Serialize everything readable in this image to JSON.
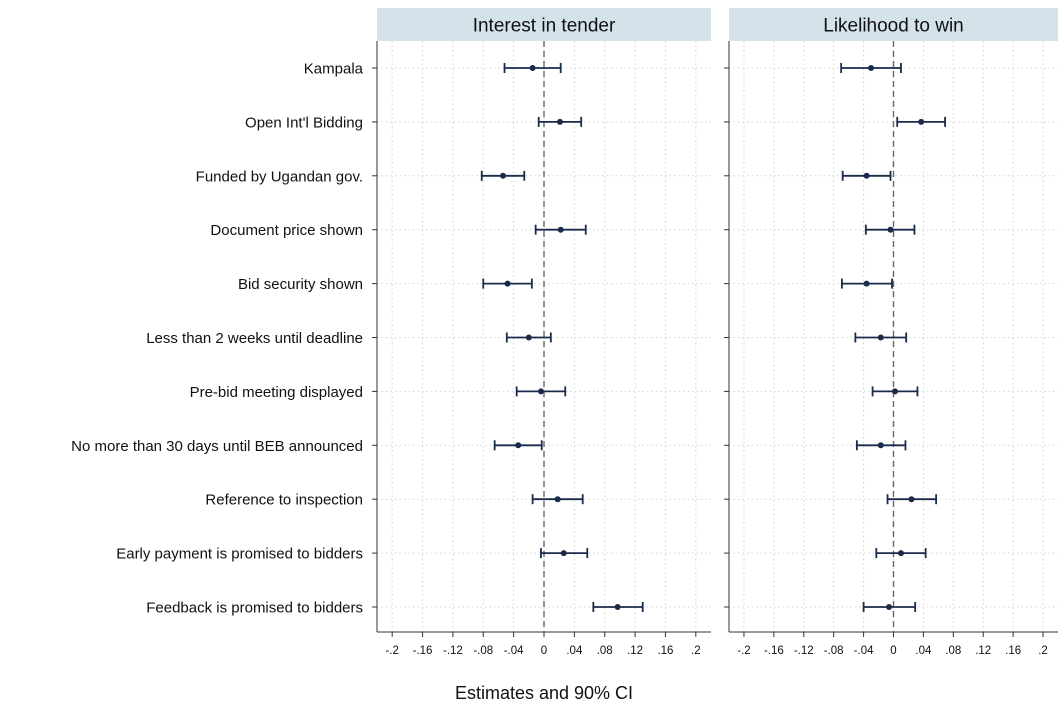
{
  "chart_data": [
    {
      "type": "scatter",
      "subtype": "coefficient plot with error bars",
      "title": "Interest in tender",
      "categories": [
        "Kampala",
        "Open Int'l Bidding",
        "Funded by Ugandan gov.",
        "Document price shown",
        "Bid security shown",
        "Less than 2 weeks until deadline",
        "Pre-bid meeting displayed",
        "No more than 30 days until BEB announced",
        "Reference to inspection",
        "Early payment is promised to bidders",
        "Feedback is promised to bidders"
      ],
      "series": [
        {
          "estimate": [
            -0.015,
            0.021,
            -0.054,
            0.022,
            -0.048,
            -0.02,
            -0.004,
            -0.034,
            0.018,
            0.026,
            0.097
          ],
          "ci_low": [
            -0.052,
            -0.007,
            -0.082,
            -0.011,
            -0.08,
            -0.049,
            -0.036,
            -0.065,
            -0.015,
            -0.004,
            0.065
          ],
          "ci_high": [
            0.022,
            0.049,
            -0.026,
            0.055,
            -0.016,
            0.009,
            0.028,
            -0.003,
            0.051,
            0.057,
            0.13
          ]
        }
      ],
      "xlim": [
        -0.22,
        0.22
      ],
      "xticks": [
        "-.2",
        "-.16",
        "-.12",
        "-.08",
        "-.04",
        "0",
        ".04",
        ".08",
        ".12",
        ".16",
        ".2"
      ],
      "reference_line": 0,
      "grid": true
    },
    {
      "type": "scatter",
      "subtype": "coefficient plot with error bars",
      "title": "Likelihood to win",
      "categories": [
        "Kampala",
        "Open Int'l Bidding",
        "Funded by Ugandan gov.",
        "Document price shown",
        "Bid security shown",
        "Less than 2 weeks until deadline",
        "Pre-bid meeting displayed",
        "No more than 30 days until BEB announced",
        "Reference to inspection",
        "Early payment is promised to bidders",
        "Feedback is promised to bidders"
      ],
      "series": [
        {
          "estimate": [
            -0.03,
            0.037,
            -0.036,
            -0.004,
            -0.036,
            -0.017,
            0.002,
            -0.017,
            0.024,
            0.01,
            -0.006
          ],
          "ci_low": [
            -0.07,
            0.005,
            -0.068,
            -0.037,
            -0.069,
            -0.051,
            -0.028,
            -0.049,
            -0.008,
            -0.023,
            -0.04
          ],
          "ci_high": [
            0.01,
            0.069,
            -0.004,
            0.028,
            -0.002,
            0.017,
            0.032,
            0.016,
            0.057,
            0.043,
            0.029
          ]
        }
      ],
      "xlim": [
        -0.22,
        0.22
      ],
      "xticks": [
        "-.2",
        "-.16",
        "-.12",
        "-.08",
        "-.04",
        "0",
        ".04",
        ".08",
        ".12",
        ".16",
        ".2"
      ],
      "reference_line": 0,
      "grid": true
    }
  ],
  "xlabel": "Estimates and 90% CI",
  "colors": {
    "marker": "#1a2a4a",
    "panel_header": "#d4e3ea",
    "reference_line": "#666666",
    "grid": "#d2d2d2"
  }
}
